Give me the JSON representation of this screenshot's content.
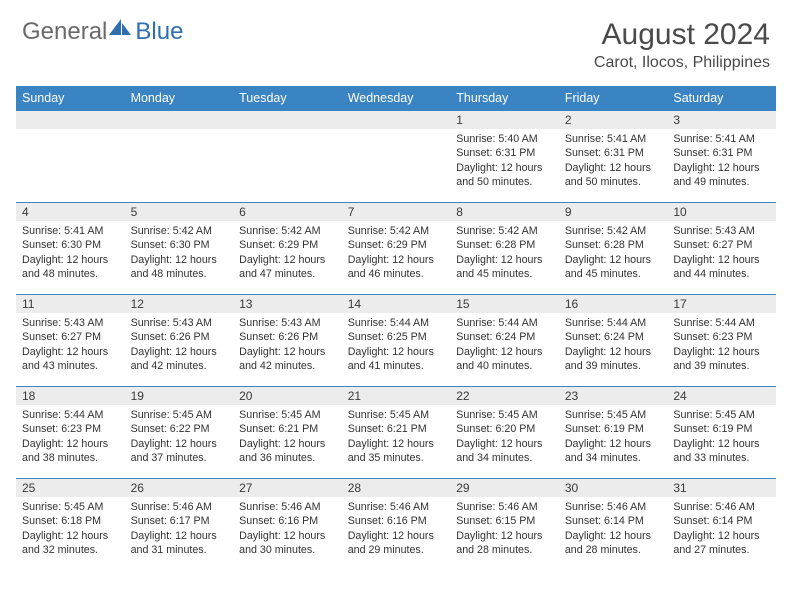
{
  "logo": {
    "general": "General",
    "blue": "Blue"
  },
  "title": "August 2024",
  "location": "Carot, Ilocos, Philippines",
  "colors": {
    "header_bg": "#3b84c4",
    "header_text": "#ffffff",
    "daynum_bg": "#ececec",
    "border": "#3b84c4",
    "logo_gray": "#6a6a6a",
    "logo_blue": "#2f6fb0",
    "text": "#333333",
    "title_text": "#4a4a4a"
  },
  "day_headers": [
    "Sunday",
    "Monday",
    "Tuesday",
    "Wednesday",
    "Thursday",
    "Friday",
    "Saturday"
  ],
  "weeks": [
    [
      null,
      null,
      null,
      null,
      {
        "n": "1",
        "sunrise": "5:40 AM",
        "sunset": "6:31 PM",
        "daylight": "12 hours and 50 minutes."
      },
      {
        "n": "2",
        "sunrise": "5:41 AM",
        "sunset": "6:31 PM",
        "daylight": "12 hours and 50 minutes."
      },
      {
        "n": "3",
        "sunrise": "5:41 AM",
        "sunset": "6:31 PM",
        "daylight": "12 hours and 49 minutes."
      }
    ],
    [
      {
        "n": "4",
        "sunrise": "5:41 AM",
        "sunset": "6:30 PM",
        "daylight": "12 hours and 48 minutes."
      },
      {
        "n": "5",
        "sunrise": "5:42 AM",
        "sunset": "6:30 PM",
        "daylight": "12 hours and 48 minutes."
      },
      {
        "n": "6",
        "sunrise": "5:42 AM",
        "sunset": "6:29 PM",
        "daylight": "12 hours and 47 minutes."
      },
      {
        "n": "7",
        "sunrise": "5:42 AM",
        "sunset": "6:29 PM",
        "daylight": "12 hours and 46 minutes."
      },
      {
        "n": "8",
        "sunrise": "5:42 AM",
        "sunset": "6:28 PM",
        "daylight": "12 hours and 45 minutes."
      },
      {
        "n": "9",
        "sunrise": "5:42 AM",
        "sunset": "6:28 PM",
        "daylight": "12 hours and 45 minutes."
      },
      {
        "n": "10",
        "sunrise": "5:43 AM",
        "sunset": "6:27 PM",
        "daylight": "12 hours and 44 minutes."
      }
    ],
    [
      {
        "n": "11",
        "sunrise": "5:43 AM",
        "sunset": "6:27 PM",
        "daylight": "12 hours and 43 minutes."
      },
      {
        "n": "12",
        "sunrise": "5:43 AM",
        "sunset": "6:26 PM",
        "daylight": "12 hours and 42 minutes."
      },
      {
        "n": "13",
        "sunrise": "5:43 AM",
        "sunset": "6:26 PM",
        "daylight": "12 hours and 42 minutes."
      },
      {
        "n": "14",
        "sunrise": "5:44 AM",
        "sunset": "6:25 PM",
        "daylight": "12 hours and 41 minutes."
      },
      {
        "n": "15",
        "sunrise": "5:44 AM",
        "sunset": "6:24 PM",
        "daylight": "12 hours and 40 minutes."
      },
      {
        "n": "16",
        "sunrise": "5:44 AM",
        "sunset": "6:24 PM",
        "daylight": "12 hours and 39 minutes."
      },
      {
        "n": "17",
        "sunrise": "5:44 AM",
        "sunset": "6:23 PM",
        "daylight": "12 hours and 39 minutes."
      }
    ],
    [
      {
        "n": "18",
        "sunrise": "5:44 AM",
        "sunset": "6:23 PM",
        "daylight": "12 hours and 38 minutes."
      },
      {
        "n": "19",
        "sunrise": "5:45 AM",
        "sunset": "6:22 PM",
        "daylight": "12 hours and 37 minutes."
      },
      {
        "n": "20",
        "sunrise": "5:45 AM",
        "sunset": "6:21 PM",
        "daylight": "12 hours and 36 minutes."
      },
      {
        "n": "21",
        "sunrise": "5:45 AM",
        "sunset": "6:21 PM",
        "daylight": "12 hours and 35 minutes."
      },
      {
        "n": "22",
        "sunrise": "5:45 AM",
        "sunset": "6:20 PM",
        "daylight": "12 hours and 34 minutes."
      },
      {
        "n": "23",
        "sunrise": "5:45 AM",
        "sunset": "6:19 PM",
        "daylight": "12 hours and 34 minutes."
      },
      {
        "n": "24",
        "sunrise": "5:45 AM",
        "sunset": "6:19 PM",
        "daylight": "12 hours and 33 minutes."
      }
    ],
    [
      {
        "n": "25",
        "sunrise": "5:45 AM",
        "sunset": "6:18 PM",
        "daylight": "12 hours and 32 minutes."
      },
      {
        "n": "26",
        "sunrise": "5:46 AM",
        "sunset": "6:17 PM",
        "daylight": "12 hours and 31 minutes."
      },
      {
        "n": "27",
        "sunrise": "5:46 AM",
        "sunset": "6:16 PM",
        "daylight": "12 hours and 30 minutes."
      },
      {
        "n": "28",
        "sunrise": "5:46 AM",
        "sunset": "6:16 PM",
        "daylight": "12 hours and 29 minutes."
      },
      {
        "n": "29",
        "sunrise": "5:46 AM",
        "sunset": "6:15 PM",
        "daylight": "12 hours and 28 minutes."
      },
      {
        "n": "30",
        "sunrise": "5:46 AM",
        "sunset": "6:14 PM",
        "daylight": "12 hours and 28 minutes."
      },
      {
        "n": "31",
        "sunrise": "5:46 AM",
        "sunset": "6:14 PM",
        "daylight": "12 hours and 27 minutes."
      }
    ]
  ],
  "labels": {
    "sunrise": "Sunrise: ",
    "sunset": "Sunset: ",
    "daylight": "Daylight: "
  }
}
